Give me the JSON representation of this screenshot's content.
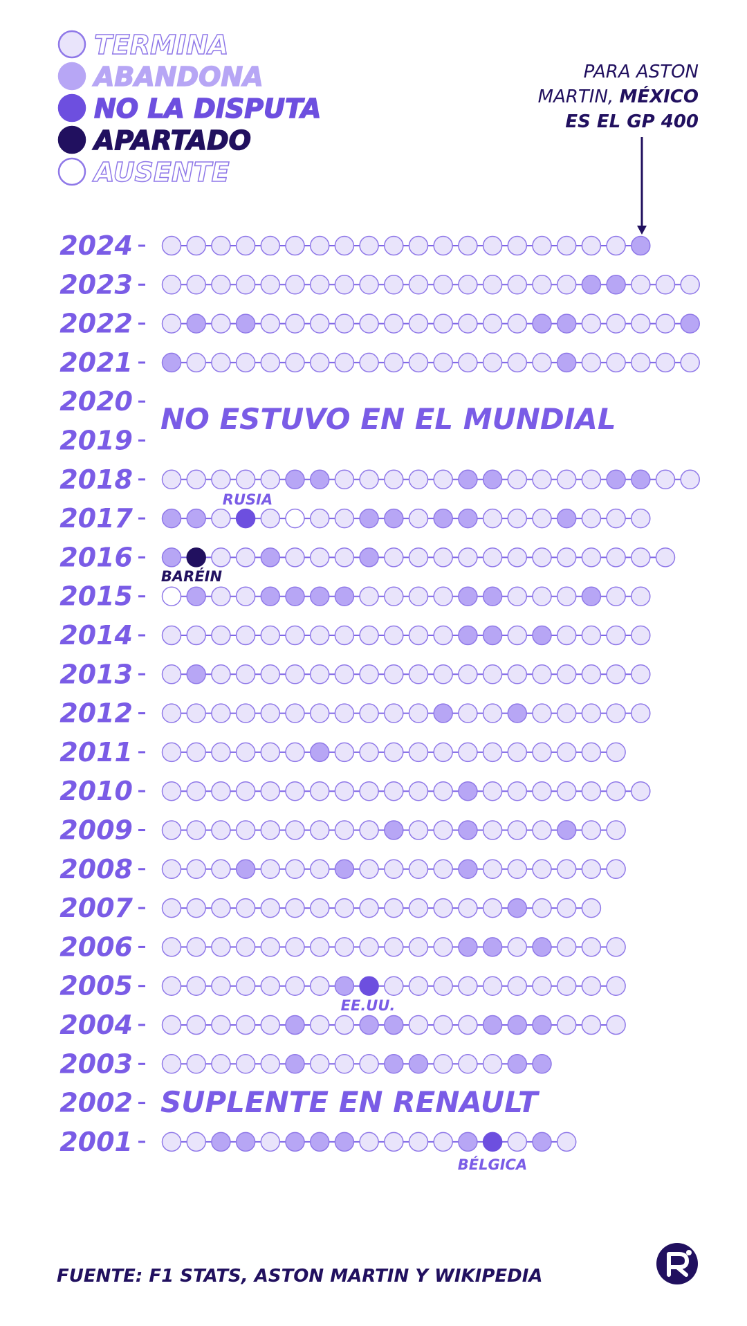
{
  "colors": {
    "termina": "#e9e4fb",
    "abandona": "#b7a6f5",
    "no_la_disputa": "#6d4fdf",
    "apartado": "#21105f",
    "ausente": "#ffffff",
    "outline": "#8f78e8",
    "line": "#7e65e6",
    "text_purple": "#7a5ce6",
    "text_dark": "#21105f"
  },
  "legend": [
    {
      "key": "termina",
      "label": "TERMINA",
      "style": "outline"
    },
    {
      "key": "abandona",
      "label": "ABANDONA",
      "style": "fill-light"
    },
    {
      "key": "no_la_disputa",
      "label": "NO LA DISPUTA",
      "style": "fill"
    },
    {
      "key": "apartado",
      "label": "APARTADO",
      "style": "fill-dark"
    },
    {
      "key": "ausente",
      "label": "AUSENTE",
      "style": "outline"
    }
  ],
  "annotation": {
    "line1": "PARA ASTON",
    "line2_a": "MARTIN, ",
    "line2_b": "MÉXICO",
    "line3": "ES EL GP 400"
  },
  "notes": {
    "no_mundial": "NO ESTUVO EN EL MUNDIAL",
    "suplente": "SUPLENTE EN RENAULT"
  },
  "place_labels": {
    "rusia": "RUSIA",
    "barein": "BARÉIN",
    "eeuu": "EE.UU.",
    "belgica": "BÉLGICA"
  },
  "source": "FUENTE: F1 STATS, ASTON MARTIN Y WIKIPEDIA",
  "chart_data": {
    "type": "dot-timeline",
    "status_codes": {
      "T": "TERMINA",
      "A": "ABANDONA",
      "N": "NO LA DISPUTA",
      "P": "APARTADO",
      "X": "AUSENTE"
    },
    "rows": [
      {
        "year": "2024",
        "races": "TTTTTTTTTTTTTTTTTTTA"
      },
      {
        "year": "2023",
        "races": "TTTTTTTTTTTTTTTTTAATTT"
      },
      {
        "year": "2022",
        "races": "TATATTTTTTTTTTTAATTTTA"
      },
      {
        "year": "2021",
        "races": "ATTTTTTTTTTTTTTTATTTTT"
      },
      {
        "year": "2020",
        "races": ""
      },
      {
        "year": "2019",
        "races": ""
      },
      {
        "year": "2018",
        "races": "TTTTTAATTTTTAATTTTAATT"
      },
      {
        "year": "2017",
        "races": "AATNTXTTAATAATTTATTT"
      },
      {
        "year": "2016",
        "races": "APTTATTTATTTTTTTTTTTT"
      },
      {
        "year": "2015",
        "races": "XATTAAAATTTTAATTTATT"
      },
      {
        "year": "2014",
        "races": "TTTTTTTTTTTTAATATTTT"
      },
      {
        "year": "2013",
        "races": "TATTTTTTTTTTTTTTTTTT"
      },
      {
        "year": "2012",
        "races": "TTTTTTTTTTTATTATTTTT"
      },
      {
        "year": "2011",
        "races": "TTTTTTATTTTTTTTTTTT"
      },
      {
        "year": "2010",
        "races": "TTTTTTTTTTTTATTTTTTT"
      },
      {
        "year": "2009",
        "races": "TTTTTTTTTATTATTTATT"
      },
      {
        "year": "2008",
        "races": "TTTATTTATTTTATTTTTT"
      },
      {
        "year": "2007",
        "races": "TTTTTTTTTTTTTTATTT"
      },
      {
        "year": "2006",
        "races": "TTTTTTTTTTTTAATATTT"
      },
      {
        "year": "2005",
        "races": "TTTTTTTANTTTTTTTTTT"
      },
      {
        "year": "2004",
        "races": "TTTTTATTAATTTAAATTT"
      },
      {
        "year": "2003",
        "races": "TTTTTATTTAATTTAA"
      },
      {
        "year": "2002",
        "races": ""
      },
      {
        "year": "2001",
        "races": "TTAATAAATTTTANTAT"
      }
    ]
  }
}
